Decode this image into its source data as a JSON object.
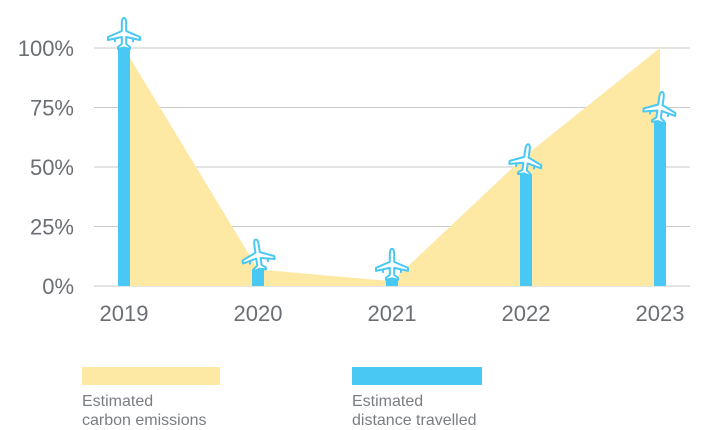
{
  "chart_data": {
    "type": "bar",
    "categories": [
      "2019",
      "2020",
      "2021",
      "2022",
      "2023"
    ],
    "series": [
      {
        "name": "Estimated carbon emissions",
        "render": "area",
        "color": "#fde8a4",
        "values": [
          100,
          7,
          2,
          55,
          100
        ]
      },
      {
        "name": "Estimated distance travelled",
        "render": "bar",
        "color": "#49c8f3",
        "values": [
          100,
          7,
          3,
          47,
          69
        ]
      }
    ],
    "y_ticks": [
      "0%",
      "25%",
      "50%",
      "75%",
      "100%"
    ],
    "ylim": [
      0,
      100
    ],
    "grid": true,
    "marker_icon": "airplane-icon",
    "legend_position": "bottom",
    "title": "",
    "xlabel": "",
    "ylabel": ""
  },
  "legend": [
    {
      "label": "Estimated\ncarbon emissions",
      "color": "#fde8a4"
    },
    {
      "label": "Estimated\ndistance travelled",
      "color": "#49c8f3"
    }
  ]
}
